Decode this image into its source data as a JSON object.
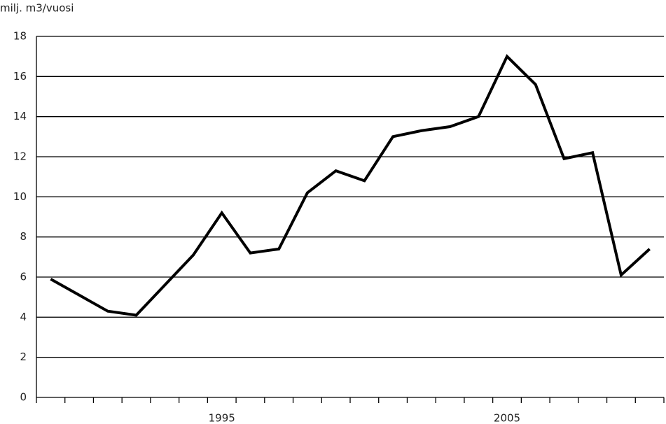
{
  "chart_data": {
    "type": "line",
    "y_label": "milj. m3/vuosi",
    "categories": [
      null,
      null,
      null,
      null,
      null,
      null,
      "1995",
      null,
      null,
      null,
      null,
      null,
      null,
      null,
      null,
      null,
      "2005",
      null,
      null,
      null,
      null,
      null
    ],
    "values": [
      5.9,
      5.1,
      4.3,
      4.1,
      5.6,
      7.1,
      9.2,
      7.2,
      7.4,
      10.2,
      11.3,
      10.8,
      13.0,
      13.3,
      13.5,
      14.0,
      17.0,
      15.6,
      11.9,
      12.2,
      6.1,
      7.4
    ],
    "color": "#000000",
    "ylim": [
      0,
      18
    ],
    "yticks": [
      0,
      2,
      4,
      6,
      8,
      10,
      12,
      14,
      16,
      18
    ],
    "grid": true
  }
}
